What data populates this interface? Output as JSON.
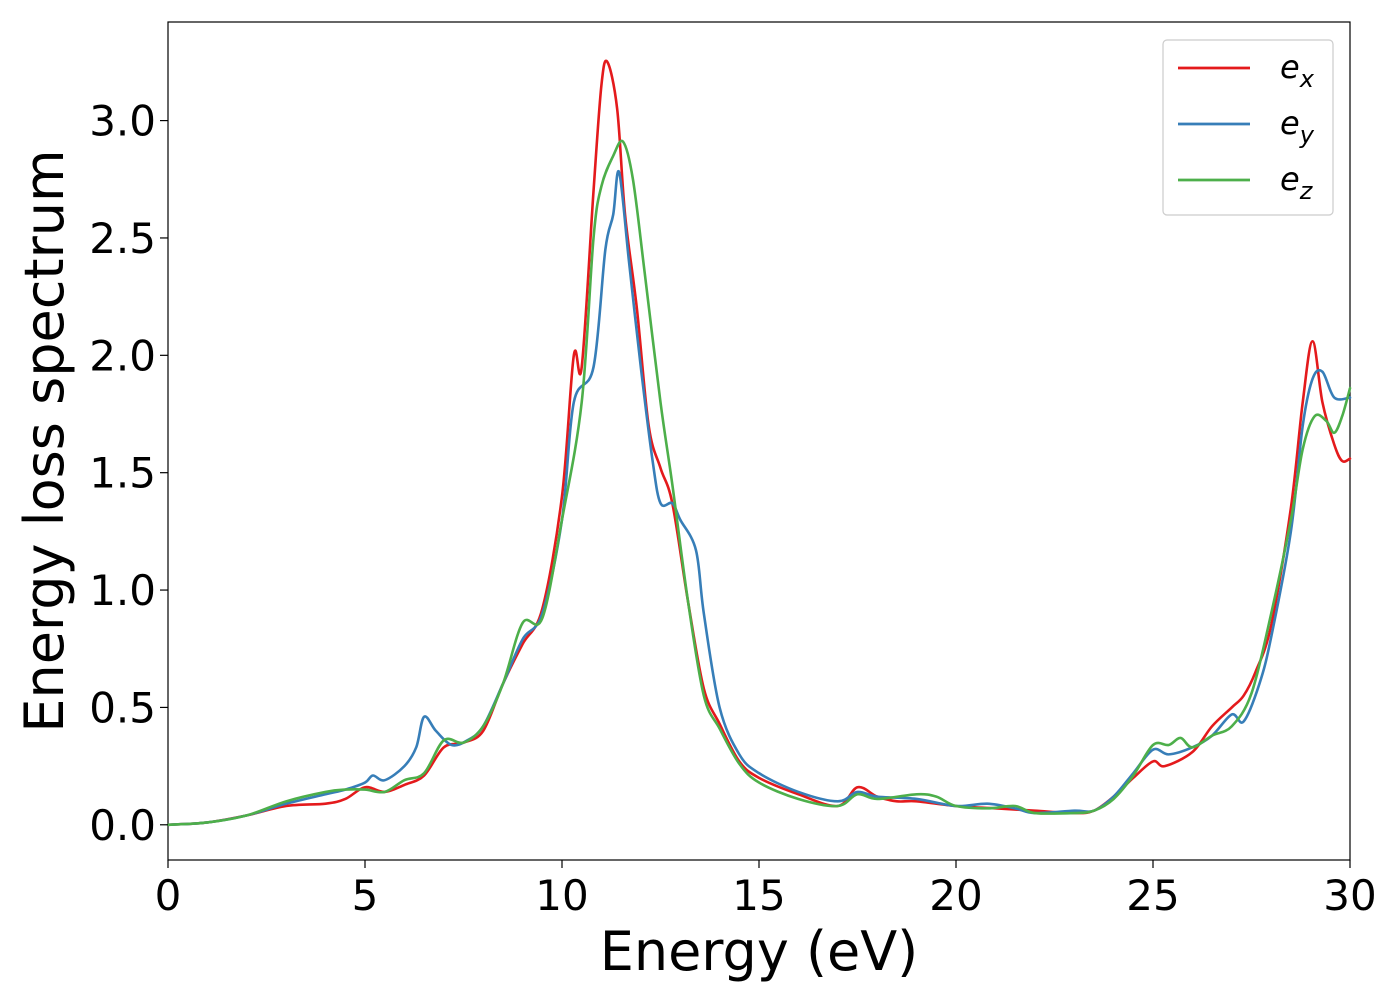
{
  "chart_data": {
    "type": "line",
    "xlabel": "Energy (eV)",
    "ylabel": "Energy loss spectrum",
    "xlim": [
      0,
      30
    ],
    "ylim": [
      -0.15,
      3.42
    ],
    "xticks": [
      0,
      5,
      10,
      15,
      20,
      25,
      30
    ],
    "xtick_labels": [
      "0",
      "5",
      "10",
      "15",
      "20",
      "25",
      "30"
    ],
    "yticks": [
      0.0,
      0.5,
      1.0,
      1.5,
      2.0,
      2.5,
      3.0
    ],
    "ytick_labels": [
      "0.0",
      "0.5",
      "1.0",
      "1.5",
      "2.0",
      "2.5",
      "3.0"
    ],
    "grid": false,
    "legend_position": "top-right",
    "series": [
      {
        "name": "e",
        "subscript": "x",
        "color": "#e41a1c",
        "points": [
          [
            0,
            0
          ],
          [
            1,
            0.01
          ],
          [
            2,
            0.04
          ],
          [
            3,
            0.08
          ],
          [
            4,
            0.09
          ],
          [
            4.5,
            0.11
          ],
          [
            5,
            0.16
          ],
          [
            5.5,
            0.14
          ],
          [
            6,
            0.17
          ],
          [
            6.5,
            0.21
          ],
          [
            7,
            0.33
          ],
          [
            7.5,
            0.35
          ],
          [
            8,
            0.4
          ],
          [
            8.5,
            0.6
          ],
          [
            9,
            0.77
          ],
          [
            9.5,
            0.92
          ],
          [
            10,
            1.4
          ],
          [
            10.3,
            2.0
          ],
          [
            10.5,
            1.95
          ],
          [
            10.8,
            2.7
          ],
          [
            11.0,
            3.15
          ],
          [
            11.15,
            3.25
          ],
          [
            11.4,
            3.05
          ],
          [
            11.6,
            2.6
          ],
          [
            11.9,
            2.2
          ],
          [
            12.2,
            1.7
          ],
          [
            12.5,
            1.52
          ],
          [
            12.8,
            1.37
          ],
          [
            13.2,
            0.95
          ],
          [
            13.6,
            0.58
          ],
          [
            14,
            0.43
          ],
          [
            14.5,
            0.27
          ],
          [
            15,
            0.2
          ],
          [
            16,
            0.13
          ],
          [
            17,
            0.08
          ],
          [
            17.5,
            0.16
          ],
          [
            18,
            0.12
          ],
          [
            18.5,
            0.1
          ],
          [
            19,
            0.1
          ],
          [
            20,
            0.08
          ],
          [
            21,
            0.07
          ],
          [
            22,
            0.06
          ],
          [
            23,
            0.05
          ],
          [
            23.5,
            0.06
          ],
          [
            24,
            0.12
          ],
          [
            24.5,
            0.2
          ],
          [
            25,
            0.27
          ],
          [
            25.3,
            0.25
          ],
          [
            26,
            0.31
          ],
          [
            26.5,
            0.42
          ],
          [
            27,
            0.5
          ],
          [
            27.3,
            0.55
          ],
          [
            27.6,
            0.65
          ],
          [
            28,
            0.85
          ],
          [
            28.5,
            1.35
          ],
          [
            28.8,
            1.8
          ],
          [
            29.05,
            2.06
          ],
          [
            29.3,
            1.8
          ],
          [
            29.6,
            1.62
          ],
          [
            29.8,
            1.55
          ],
          [
            30,
            1.56
          ]
        ]
      },
      {
        "name": "e",
        "subscript": "y",
        "color": "#377eb8",
        "points": [
          [
            0,
            0
          ],
          [
            1,
            0.01
          ],
          [
            2,
            0.04
          ],
          [
            3,
            0.09
          ],
          [
            4,
            0.13
          ],
          [
            4.5,
            0.15
          ],
          [
            5,
            0.18
          ],
          [
            5.2,
            0.21
          ],
          [
            5.5,
            0.19
          ],
          [
            6,
            0.25
          ],
          [
            6.3,
            0.33
          ],
          [
            6.5,
            0.46
          ],
          [
            6.8,
            0.4
          ],
          [
            7.2,
            0.34
          ],
          [
            7.6,
            0.36
          ],
          [
            8,
            0.42
          ],
          [
            8.5,
            0.6
          ],
          [
            9,
            0.79
          ],
          [
            9.5,
            0.9
          ],
          [
            10,
            1.3
          ],
          [
            10.3,
            1.8
          ],
          [
            10.8,
            1.95
          ],
          [
            11.1,
            2.45
          ],
          [
            11.3,
            2.6
          ],
          [
            11.45,
            2.78
          ],
          [
            11.7,
            2.4
          ],
          [
            12,
            1.95
          ],
          [
            12.3,
            1.55
          ],
          [
            12.5,
            1.37
          ],
          [
            12.8,
            1.37
          ],
          [
            13,
            1.3
          ],
          [
            13.4,
            1.17
          ],
          [
            13.6,
            0.9
          ],
          [
            14,
            0.5
          ],
          [
            14.5,
            0.3
          ],
          [
            15,
            0.22
          ],
          [
            16,
            0.14
          ],
          [
            17,
            0.1
          ],
          [
            17.5,
            0.14
          ],
          [
            18,
            0.12
          ],
          [
            19,
            0.11
          ],
          [
            20,
            0.08
          ],
          [
            20.8,
            0.09
          ],
          [
            21.5,
            0.07
          ],
          [
            22,
            0.05
          ],
          [
            23,
            0.06
          ],
          [
            23.5,
            0.06
          ],
          [
            24,
            0.12
          ],
          [
            24.5,
            0.22
          ],
          [
            25,
            0.32
          ],
          [
            25.4,
            0.3
          ],
          [
            26,
            0.33
          ],
          [
            26.5,
            0.38
          ],
          [
            27,
            0.47
          ],
          [
            27.3,
            0.44
          ],
          [
            27.7,
            0.6
          ],
          [
            28,
            0.8
          ],
          [
            28.5,
            1.25
          ],
          [
            28.8,
            1.7
          ],
          [
            29.05,
            1.9
          ],
          [
            29.3,
            1.93
          ],
          [
            29.6,
            1.82
          ],
          [
            30,
            1.82
          ]
        ]
      },
      {
        "name": "e",
        "subscript": "z",
        "color": "#4daf4a",
        "points": [
          [
            0,
            0
          ],
          [
            1,
            0.01
          ],
          [
            2,
            0.04
          ],
          [
            3,
            0.1
          ],
          [
            4,
            0.14
          ],
          [
            4.5,
            0.15
          ],
          [
            5,
            0.15
          ],
          [
            5.5,
            0.14
          ],
          [
            6,
            0.19
          ],
          [
            6.5,
            0.22
          ],
          [
            7,
            0.36
          ],
          [
            7.5,
            0.35
          ],
          [
            8,
            0.42
          ],
          [
            8.5,
            0.6
          ],
          [
            9,
            0.86
          ],
          [
            9.5,
            0.88
          ],
          [
            10,
            1.3
          ],
          [
            10.5,
            1.8
          ],
          [
            10.8,
            2.5
          ],
          [
            11.0,
            2.72
          ],
          [
            11.3,
            2.85
          ],
          [
            11.55,
            2.91
          ],
          [
            11.8,
            2.75
          ],
          [
            12.1,
            2.35
          ],
          [
            12.5,
            1.8
          ],
          [
            12.8,
            1.45
          ],
          [
            13.2,
            0.95
          ],
          [
            13.6,
            0.55
          ],
          [
            14,
            0.41
          ],
          [
            14.5,
            0.26
          ],
          [
            15,
            0.18
          ],
          [
            16,
            0.11
          ],
          [
            17,
            0.08
          ],
          [
            17.5,
            0.13
          ],
          [
            18,
            0.11
          ],
          [
            19,
            0.13
          ],
          [
            19.5,
            0.12
          ],
          [
            20,
            0.08
          ],
          [
            20.8,
            0.07
          ],
          [
            21.5,
            0.08
          ],
          [
            22,
            0.05
          ],
          [
            23,
            0.05
          ],
          [
            23.5,
            0.06
          ],
          [
            24,
            0.11
          ],
          [
            24.5,
            0.21
          ],
          [
            25,
            0.34
          ],
          [
            25.4,
            0.34
          ],
          [
            25.7,
            0.37
          ],
          [
            26,
            0.33
          ],
          [
            26.5,
            0.38
          ],
          [
            27,
            0.42
          ],
          [
            27.5,
            0.56
          ],
          [
            28,
            0.9
          ],
          [
            28.5,
            1.3
          ],
          [
            28.8,
            1.6
          ],
          [
            29.1,
            1.74
          ],
          [
            29.4,
            1.72
          ],
          [
            29.6,
            1.67
          ],
          [
            29.8,
            1.74
          ],
          [
            30,
            1.86
          ]
        ]
      }
    ]
  }
}
